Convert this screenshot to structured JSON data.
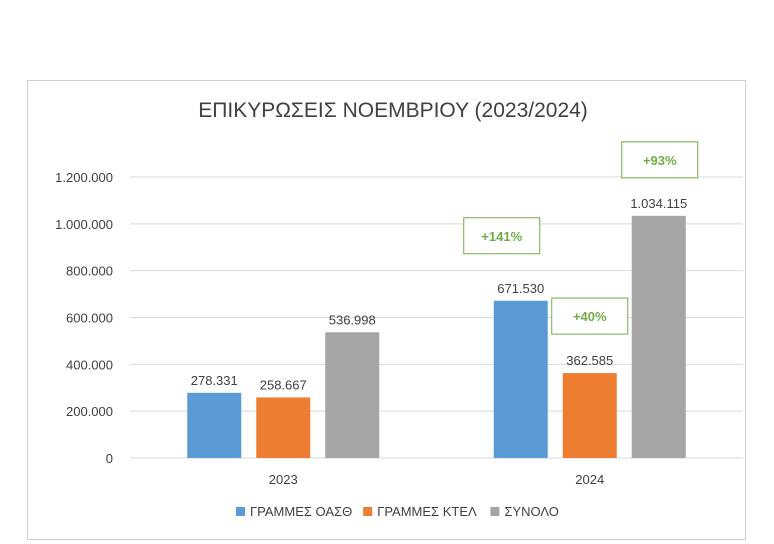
{
  "chart_data": {
    "type": "bar",
    "title": "ΕΠΙΚΥΡΩΣΕΙΣ ΝΟΕΜΒΡΙΟΥ (2023/2024)",
    "categories": [
      "2023",
      "2024"
    ],
    "series": [
      {
        "name": "ΓΡΑΜΜΕΣ ΟΑΣΘ",
        "color": "#5b9bd5",
        "values": [
          278331,
          671530
        ],
        "labels": [
          "278.331",
          "671.530"
        ]
      },
      {
        "name": "ΓΡΑΜΜΕΣ ΚΤΕΛ",
        "color": "#ed7d31",
        "values": [
          258667,
          362585
        ],
        "labels": [
          "258.667",
          "362.585"
        ]
      },
      {
        "name": "ΣΥΝΟΛΟ",
        "color": "#a5a5a5",
        "values": [
          536998,
          1034115
        ],
        "labels": [
          "536.998",
          "1.034.115"
        ]
      }
    ],
    "ylim": [
      0,
      1200000
    ],
    "yticks": [
      0,
      200000,
      400000,
      600000,
      800000,
      1000000,
      1200000
    ],
    "ytick_labels": [
      "0",
      "200.000",
      "400.000",
      "600.000",
      "800.000",
      "1.000.000",
      "1.200.000"
    ],
    "grid": true,
    "legend_position": "bottom",
    "annotations": [
      {
        "text": "+141%",
        "category": "2024",
        "series": "ΓΡΑΜΜΕΣ ΟΑΣΘ",
        "color": "#70ad47"
      },
      {
        "text": "+40%",
        "category": "2024",
        "series": "ΓΡΑΜΜΕΣ ΚΤΕΛ",
        "color": "#70ad47"
      },
      {
        "text": "+93%",
        "category": "2024",
        "series": "ΣΥΝΟΛΟ",
        "color": "#70ad47"
      }
    ]
  }
}
